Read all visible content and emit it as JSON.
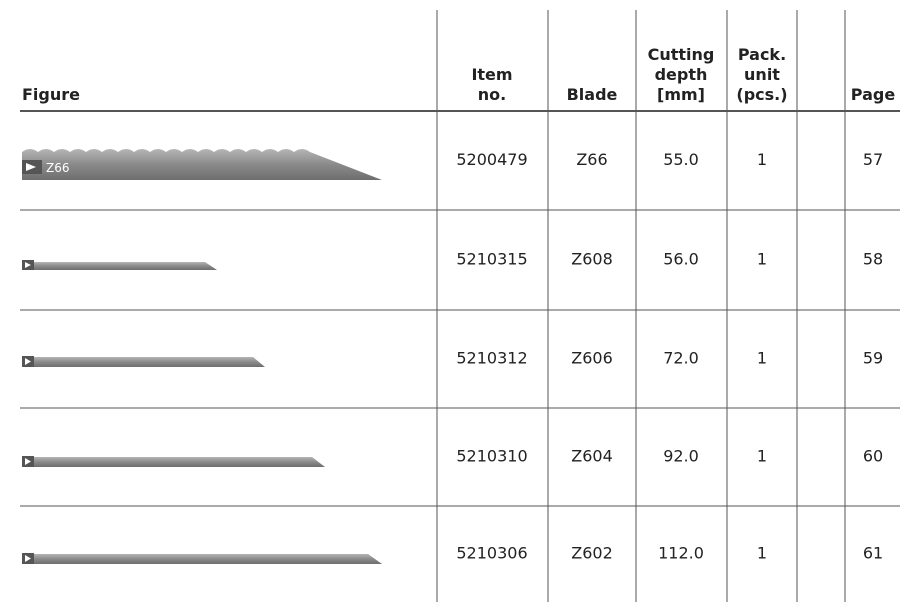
{
  "table": {
    "header": [
      [
        "Figure"
      ],
      [
        "Item",
        "no."
      ],
      [
        "Blade"
      ],
      [
        "Cutting",
        "depth",
        "[mm]"
      ],
      [
        "Pack.",
        "unit",
        "(pcs.)"
      ],
      [
        "Page"
      ]
    ],
    "rows": [
      [
        "5200479",
        "Z66",
        "55.0",
        "1",
        "57"
      ],
      [
        "5210315",
        "Z608",
        "56.0",
        "1",
        "58"
      ],
      [
        "5210312",
        "Z606",
        "72.0",
        "1",
        "59"
      ],
      [
        "5210310",
        "Z604",
        "92.0",
        "1",
        "60"
      ],
      [
        "5210306",
        "Z602",
        "112.0",
        "1",
        "61"
      ]
    ]
  }
}
